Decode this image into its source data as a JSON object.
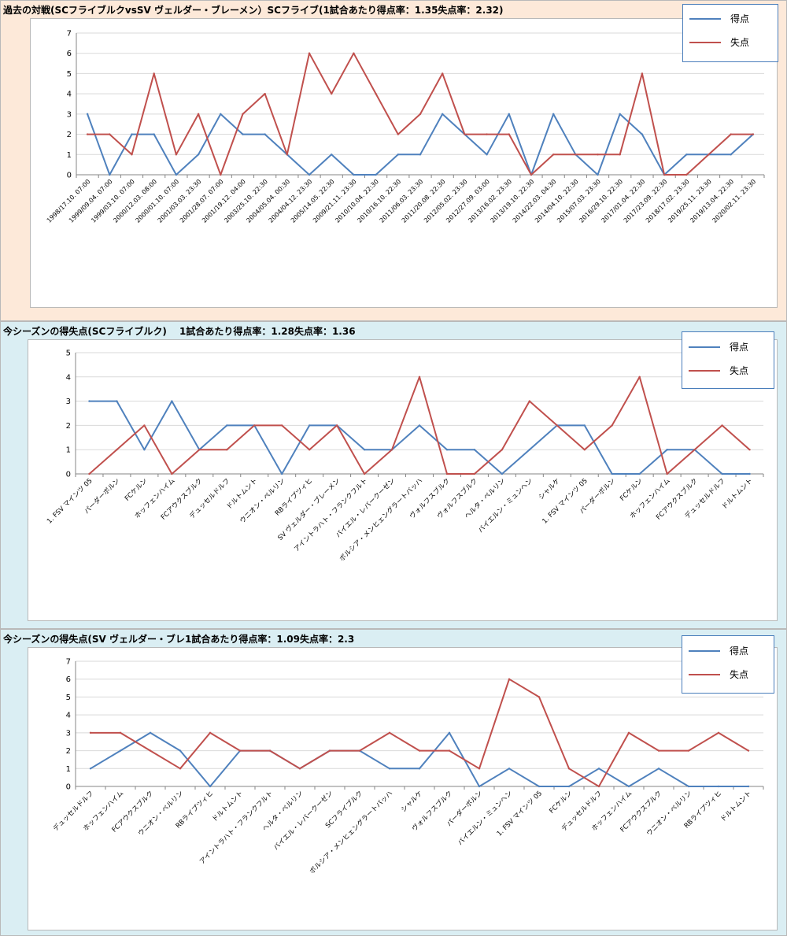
{
  "colors": {
    "score": "#4f81bd",
    "conceded": "#c0504d",
    "panel1_bg": "#fde9d9",
    "panel_bg": "#daeef3"
  },
  "legend": {
    "score": "得点",
    "conceded": "失点"
  },
  "panels": [
    {
      "title": "過去の対戦(SCフライブルクvsSV ヴェルダー・ブレーメン）SCフライブ(1試合あたり得点率：1.35失点率：2.32)"
    },
    {
      "title": "今シーズンの得失点(SCフライブルク)　 1試合あたり得点率：1.28失点率：1.36"
    },
    {
      "title": "今シーズンの得失点(SV ヴェルダー・ブレ1試合あたり得点率：1.09失点率：2.3"
    }
  ],
  "chart_data": [
    {
      "type": "line",
      "ylim": [
        0,
        7
      ],
      "grid": true,
      "legend_position": "top-right",
      "categories": [
        "1998/17.10. 07:00",
        "1999/09.04. 07:00",
        "1999/03.10. 07:00",
        "2000/12.03. 08:00",
        "2000/01.10. 07:00",
        "2001/03.03. 23:30",
        "2001/28.07. 07:00",
        "2001/19.12. 04:00",
        "2003/25.10. 22:30",
        "2004/05.04. 00:30",
        "2004/04.12. 23:30",
        "2005/14.05. 22:30",
        "2009/21.11. 23:30",
        "2010/10.04. 22:30",
        "2010/16.10. 22:30",
        "2011/06.03. 23:30",
        "2011/20.08. 22:30",
        "2012/05.02. 23:30",
        "2012/27.09. 03:00",
        "2013/16.02. 23:30",
        "2013/19.10. 22:30",
        "2014/22.03. 04:30",
        "2014/04.10. 22:30",
        "2015/07.03. 23:30",
        "2016/29.10. 22:30",
        "2017/01.04. 22:30",
        "2017/23.09. 22:30",
        "2018/17.02. 23:30",
        "2019/25.11. 23:30",
        "2019/13.04. 22:30",
        "2020/02.11. 23:30"
      ],
      "series": [
        {
          "name": "得点",
          "values": [
            3,
            0,
            2,
            2,
            0,
            1,
            3,
            2,
            2,
            1,
            0,
            1,
            0,
            0,
            1,
            1,
            3,
            2,
            1,
            3,
            0,
            3,
            1,
            0,
            3,
            2,
            0,
            1,
            1,
            1,
            2
          ]
        },
        {
          "name": "失点",
          "values": [
            2,
            2,
            1,
            5,
            1,
            3,
            0,
            3,
            4,
            1,
            6,
            4,
            6,
            4,
            2,
            3,
            5,
            2,
            2,
            2,
            0,
            1,
            1,
            1,
            1,
            5,
            0,
            0,
            1,
            2,
            2
          ]
        }
      ]
    },
    {
      "type": "line",
      "ylim": [
        0,
        5
      ],
      "grid": true,
      "legend_position": "top-right",
      "categories": [
        "1. FSV マインツ 05",
        "パーダーボルン",
        "FCケルン",
        "ホッフェンハイム",
        "FCアウクスブルク",
        "デュッセルドルフ",
        "ドルトムント",
        "ウニオン・ベルリン",
        "RBライプツィヒ",
        "SV ヴェルダー・ブレーメン",
        "アイントラハト・フランクフルト",
        "バイエル・レバークーゼン",
        "ボルシア・メンヒェングラートバッハ",
        "ヴォルフスブルク",
        "ヴォルフスブルク",
        "ヘルタ・ベルリン",
        "バイエルン・ミュンヘン",
        "シャルケ",
        "1. FSV マインツ 05",
        "パーダーボルン",
        "FCケルン",
        "ホッフェンハイム",
        "FCアウクスブルク",
        "デュッセルドルフ",
        "ドルトムント"
      ],
      "series": [
        {
          "name": "得点",
          "values": [
            3,
            3,
            1,
            3,
            1,
            2,
            2,
            0,
            2,
            2,
            1,
            1,
            2,
            1,
            1,
            0,
            1,
            2,
            2,
            0,
            0,
            1,
            1,
            0,
            0
          ]
        },
        {
          "name": "失点",
          "values": [
            0,
            1,
            2,
            0,
            1,
            1,
            2,
            2,
            1,
            2,
            0,
            1,
            4,
            0,
            0,
            1,
            3,
            2,
            1,
            2,
            4,
            0,
            1,
            2,
            1
          ]
        }
      ]
    },
    {
      "type": "line",
      "ylim": [
        0,
        7
      ],
      "grid": true,
      "legend_position": "top-right",
      "categories": [
        "デュッセルドルフ",
        "ホッフェンハイム",
        "FCアウクスブルク",
        "ウニオン・ベルリン",
        "RBライプツィヒ",
        "ドルトムント",
        "アイントラハト・フランクフルト",
        "ヘルタ・ベルリン",
        "バイエル・レバークーゼン",
        "SCフライブルク",
        "ボルシア・メンヒェングラートバッハ",
        "シャルケ",
        "ヴォルフスブルク",
        "パーダーボルン",
        "バイエルン・ミュンヘン",
        "1. FSV マインツ 05",
        "FCケルン",
        "デュッセルドルフ",
        "ホッフェンハイム",
        "FCアウクスブルク",
        "ウニオン・ベルリン",
        "RBライプツィヒ",
        "ドルトムント"
      ],
      "series": [
        {
          "name": "得点",
          "values": [
            1,
            2,
            3,
            2,
            0,
            2,
            2,
            1,
            2,
            2,
            1,
            1,
            3,
            0,
            1,
            0,
            0,
            1,
            0,
            1,
            0,
            0,
            0
          ]
        },
        {
          "name": "失点",
          "values": [
            3,
            3,
            2,
            1,
            3,
            2,
            2,
            1,
            2,
            2,
            3,
            2,
            2,
            1,
            6,
            5,
            1,
            0,
            3,
            2,
            2,
            3,
            2
          ]
        }
      ]
    }
  ]
}
